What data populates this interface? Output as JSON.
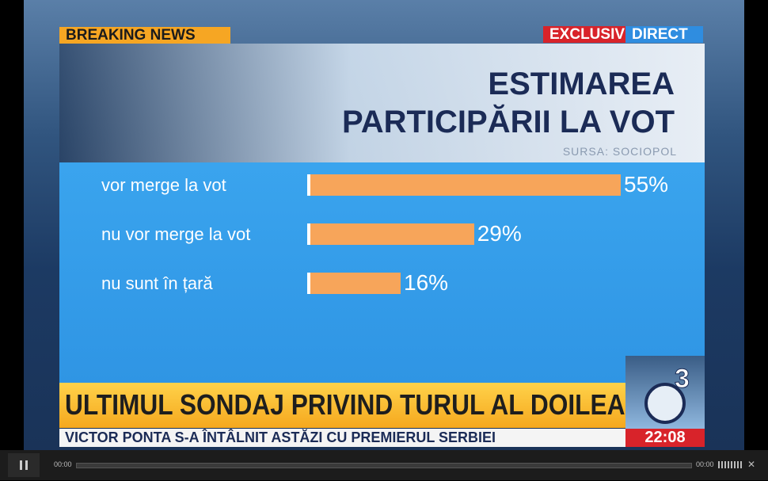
{
  "chart_data": {
    "type": "bar",
    "title": "ESTIMAREA PARTICIPĂRII LA VOT",
    "source": "SURSA: SOCIOPOL",
    "categories": [
      "vor merge la vot",
      "nu vor merge la vot",
      "nu sunt în țară"
    ],
    "values": [
      55,
      29,
      16
    ],
    "value_labels": [
      "55%",
      "29%",
      "16%"
    ],
    "color": "#f7a55a"
  },
  "broadcast": {
    "breaking": "BREAKING NEWS",
    "exclusive": "EXCLUSIV",
    "live": "DIRECT",
    "headline": "ULTIMUL SONDAJ PRIVIND TURUL AL DOILEA",
    "ticker": "VICTOR PONTA S-A ÎNTÂLNIT ASTĂZI CU PREMIERUL SERBIEI",
    "clock": "22:08"
  },
  "player": {
    "current_time": "00:00",
    "duration": "00:00"
  }
}
